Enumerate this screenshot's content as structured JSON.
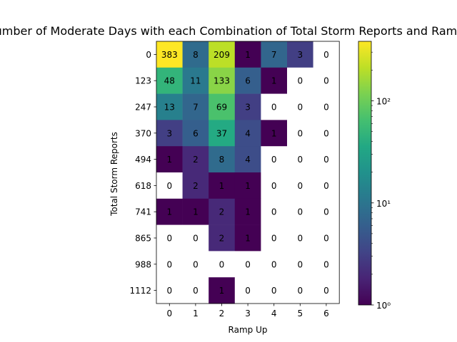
{
  "chart_data": {
    "type": "heatmap",
    "title": "Number of Moderate Days with each Combination of Total Storm Reports and Ramp Up",
    "xlabel": "Ramp Up",
    "ylabel": "Total Storm Reports",
    "x_categories": [
      "0",
      "1",
      "2",
      "3",
      "4",
      "5",
      "6"
    ],
    "y_categories": [
      "0",
      "123",
      "247",
      "370",
      "494",
      "618",
      "741",
      "865",
      "988",
      "1112"
    ],
    "values": [
      [
        383,
        8,
        209,
        1,
        7,
        3,
        0
      ],
      [
        48,
        11,
        133,
        6,
        1,
        0,
        0
      ],
      [
        13,
        7,
        69,
        3,
        0,
        0,
        0
      ],
      [
        3,
        6,
        37,
        4,
        1,
        0,
        0
      ],
      [
        1,
        2,
        8,
        4,
        0,
        0,
        0
      ],
      [
        0,
        2,
        1,
        1,
        0,
        0,
        0
      ],
      [
        1,
        1,
        2,
        1,
        0,
        0,
        0
      ],
      [
        0,
        0,
        2,
        1,
        0,
        0,
        0
      ],
      [
        0,
        0,
        0,
        0,
        0,
        0,
        0
      ],
      [
        0,
        0,
        1,
        0,
        0,
        0,
        0
      ]
    ],
    "colorscale": "viridis",
    "color_scale_type": "log",
    "colorbar": {
      "min": 1,
      "max": 383,
      "ticks": [
        {
          "value": 1,
          "label": "10⁰"
        },
        {
          "value": 10,
          "label": "10¹"
        },
        {
          "value": 100,
          "label": "10²"
        }
      ]
    },
    "zero_cells_color": "#ffffff",
    "grid": false
  }
}
